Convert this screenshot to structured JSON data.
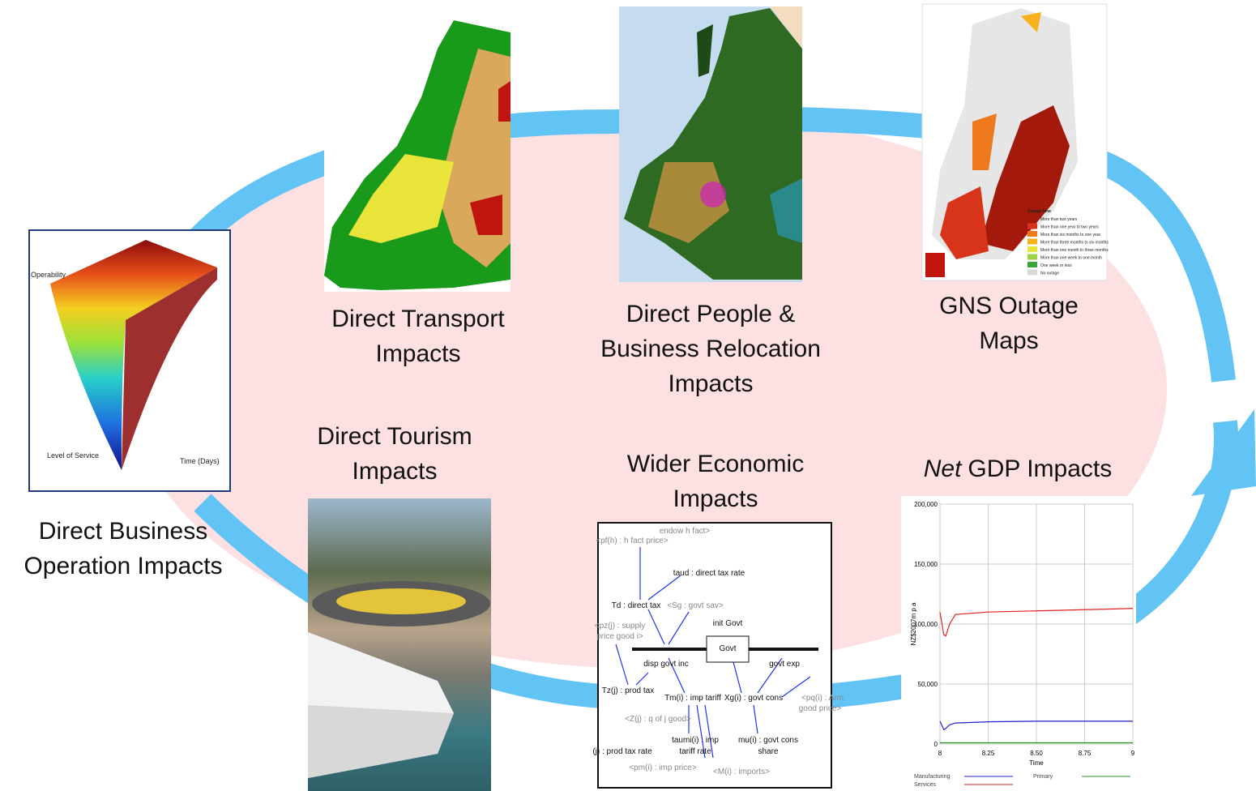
{
  "labels": {
    "business_operation": [
      "Direct Business",
      "Operation Impacts"
    ],
    "transport": [
      "Direct Transport",
      "Impacts"
    ],
    "relocation": [
      "Direct People &",
      "Business Relocation",
      "Impacts"
    ],
    "outage": [
      "GNS Outage",
      "Maps"
    ],
    "tourism": [
      "Direct Tourism",
      "Impacts"
    ],
    "wider": [
      "Wider Economic",
      "Impacts"
    ],
    "gdp": {
      "emphasis": "Net",
      "text": "GDP Impacts"
    }
  },
  "surface_plot": {
    "z_label": "Operability",
    "x_label": "Level of Service",
    "y_label": "Time (Days)"
  },
  "outage_legend": {
    "title": "Outage time",
    "items": [
      {
        "label": "More than two years",
        "color": "#a31a0c"
      },
      {
        "label": "More than one year to two years",
        "color": "#d8341a"
      },
      {
        "label": "More than six months to one year",
        "color": "#ef7a1e"
      },
      {
        "label": "More than three months to six months",
        "color": "#f6b21d"
      },
      {
        "label": "More than one month to three months",
        "color": "#e9e43a"
      },
      {
        "label": "More than one week to one month",
        "color": "#9bd445"
      },
      {
        "label": "One week or less",
        "color": "#3aa63a"
      },
      {
        "label": "No outage",
        "color": "#d9d9d9"
      }
    ]
  },
  "sd_diagram": {
    "nodes": [
      "endow h fact>",
      "<pf(h) : h fact price>",
      "taud : direct tax rate",
      "Td : direct tax",
      "<Sg : govt sav>",
      "init Govt",
      "<pz(j) : supply",
      "price good i>",
      "Govt",
      "disp govt inc",
      "govt exp",
      "Tz(j) : prod tax",
      "Tm(i) : imp tariff",
      "Xg(i) : govt cons",
      "<pq(i) : Arm",
      "good price>",
      "<Z(j) : q of j good>",
      "(j) : prod tax rate",
      "taumi(i) : imp",
      "tariff rate",
      "mu(i) : govt cons",
      "share",
      "<pm(i) : imp price>",
      "<M(i) : imports>"
    ]
  },
  "chart_data": {
    "type": "line",
    "x_label": "Time",
    "y_label": "NZ$2007m p a",
    "x": [
      8,
      8.02,
      8.03,
      8.05,
      8.08,
      8.25,
      8.5,
      8.75,
      9
    ],
    "xlim": [
      8,
      9
    ],
    "xticks": [
      8,
      8.25,
      {
        "value": 8.5,
        "label": "8.50"
      },
      8.75,
      9
    ],
    "ylim": [
      0,
      200000
    ],
    "yticks": [
      0,
      {
        "value": 50000,
        "label": "50,000"
      },
      {
        "value": 100000,
        "label": "100,000"
      },
      {
        "value": 150000,
        "label": "150,000"
      },
      {
        "value": 200000,
        "label": "200,000"
      }
    ],
    "grid": true,
    "series": [
      {
        "name": "Manufacturing",
        "color": "#2222cc",
        "values": [
          19000,
          12000,
          13000,
          16000,
          17500,
          18500,
          19000,
          19000,
          19000
        ]
      },
      {
        "name": "Services",
        "color": "#dd2222",
        "values": [
          110000,
          91000,
          90000,
          100000,
          108000,
          110000,
          111000,
          112000,
          113000
        ]
      },
      {
        "name": "Primary",
        "color": "#229922",
        "values": [
          1000,
          1000,
          1000,
          1000,
          1000,
          1000,
          1000,
          1000,
          1000
        ]
      }
    ]
  }
}
